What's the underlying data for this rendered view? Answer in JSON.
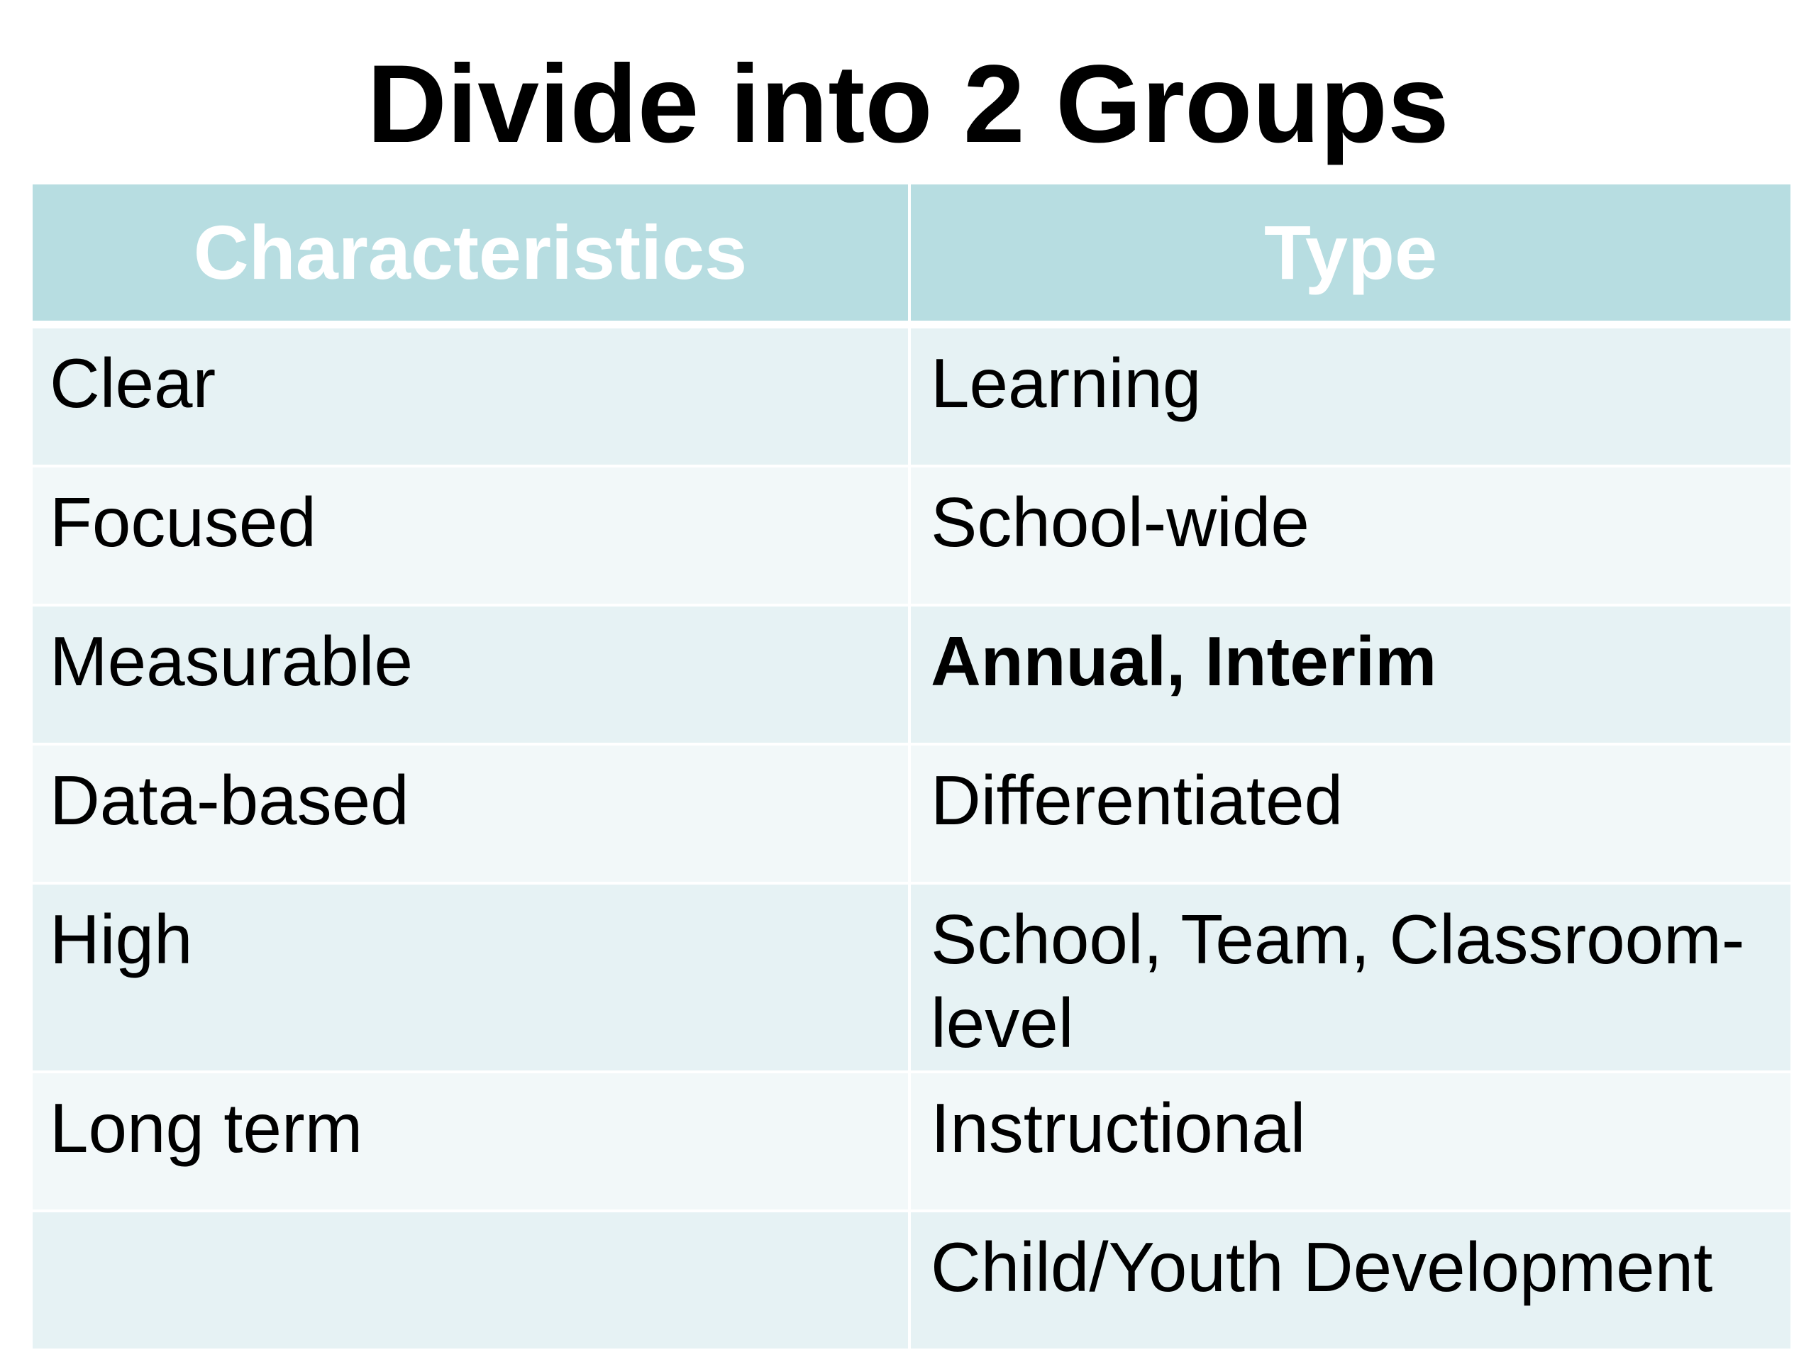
{
  "slide": {
    "title": "Divide into 2 Groups"
  },
  "table": {
    "headers": [
      "Characteristics",
      "Type"
    ],
    "rows": [
      {
        "characteristic": "Clear",
        "type": "Learning",
        "type_bold": false
      },
      {
        "characteristic": "Focused",
        "type": "School-wide",
        "type_bold": false
      },
      {
        "characteristic": "Measurable",
        "type": "Annual, Interim",
        "type_bold": true
      },
      {
        "characteristic": "Data-based",
        "type": "Differentiated",
        "type_bold": false
      },
      {
        "characteristic": "High",
        "type": "School, Team, Classroom-level",
        "type_bold": false
      },
      {
        "characteristic": "Long term",
        "type": "Instructional",
        "type_bold": false
      },
      {
        "characteristic": "",
        "type": "Child/Youth Development",
        "type_bold": false
      }
    ]
  },
  "colors": {
    "header_background": "#b7dde1",
    "header_text": "#ffffff",
    "row_band_dark": "#e6f2f4",
    "row_band_light": "#f2f8f9",
    "body_text": "#000000"
  }
}
